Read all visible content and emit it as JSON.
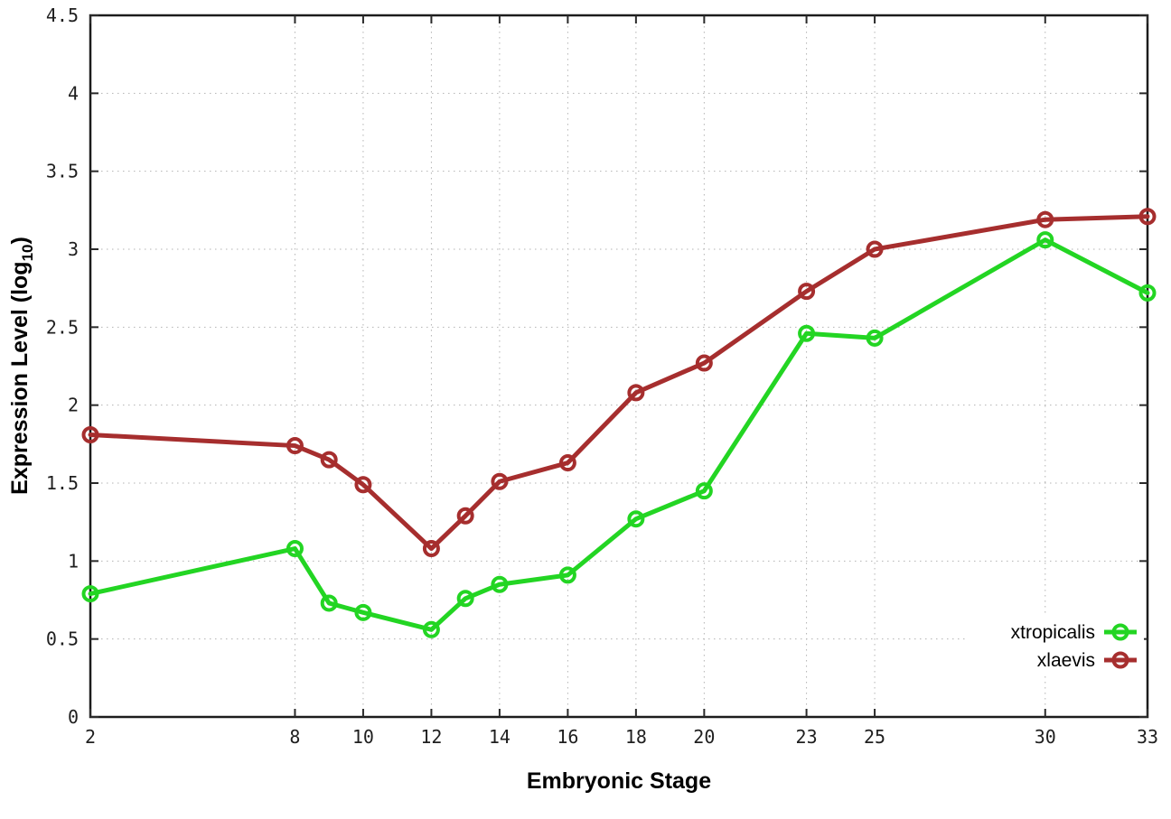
{
  "chart_data": {
    "type": "line",
    "title": "",
    "xlabel": "Embryonic Stage",
    "ylabel_main": "Expression Level (log",
    "ylabel_sub": "10",
    "ylabel_end": ")",
    "xlim": [
      2,
      33
    ],
    "ylim": [
      0,
      4.5
    ],
    "grid": true,
    "legend_position": "bottom-right-inside",
    "x_tick_labels": [
      "2",
      "8",
      "10",
      "12",
      "14",
      "16",
      "18",
      "20",
      "23",
      "25",
      "30",
      "33"
    ],
    "x_tick_values": [
      2,
      8,
      10,
      12,
      14,
      16,
      18,
      20,
      23,
      25,
      30,
      33
    ],
    "y_tick_labels": [
      "0",
      "0.5",
      "1",
      "1.5",
      "2",
      "2.5",
      "3",
      "3.5",
      "4",
      "4.5"
    ],
    "y_tick_values": [
      0,
      0.5,
      1,
      1.5,
      2,
      2.5,
      3,
      3.5,
      4,
      4.5
    ],
    "x": [
      2,
      8,
      9,
      10,
      12,
      13,
      14,
      16,
      18,
      20,
      23,
      25,
      30,
      33
    ],
    "series": [
      {
        "name": "xtropicalis",
        "color": "#23d523",
        "marker": "open-circle",
        "values": [
          0.79,
          1.08,
          0.73,
          0.67,
          0.56,
          0.76,
          0.85,
          0.91,
          1.27,
          1.45,
          2.46,
          2.43,
          3.06,
          2.72
        ]
      },
      {
        "name": "xlaevis",
        "color": "#a62e2e",
        "marker": "open-circle",
        "values": [
          1.81,
          1.74,
          1.65,
          1.49,
          1.08,
          1.29,
          1.51,
          1.63,
          2.08,
          2.27,
          2.73,
          3.0,
          3.19,
          3.21
        ]
      }
    ],
    "styles": {
      "grid_color": "#b3b3b3",
      "border_color": "#1c1c1c",
      "tick_color": "#2a2a2a",
      "background": "#ffffff",
      "line_width": 5,
      "marker_radius": 7.5,
      "marker_stroke": 4
    }
  }
}
